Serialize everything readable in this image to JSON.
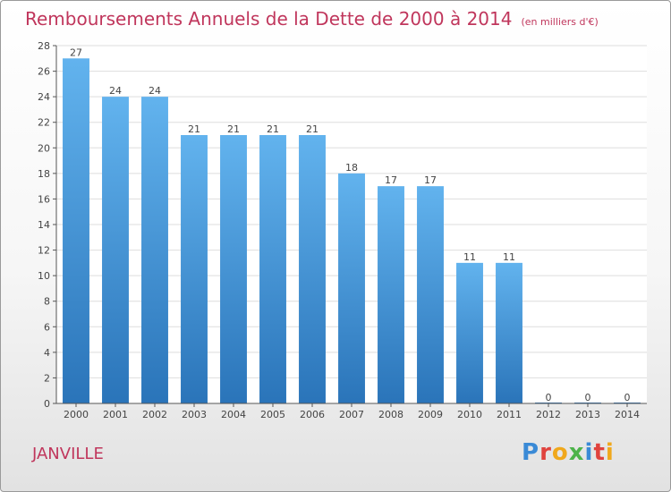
{
  "chart_data": {
    "type": "bar",
    "title": "Remboursements Annuels de la Dette de 2000 à 2014",
    "subtitle": "(en milliers d'€)",
    "categories": [
      "2000",
      "2001",
      "2002",
      "2003",
      "2004",
      "2005",
      "2006",
      "2007",
      "2008",
      "2009",
      "2010",
      "2011",
      "2012",
      "2013",
      "2014"
    ],
    "values": [
      27,
      24,
      24,
      21,
      21,
      21,
      21,
      18,
      17,
      17,
      11,
      11,
      0,
      0,
      0
    ],
    "ylim": [
      0,
      28
    ],
    "yticks": [
      0,
      2,
      4,
      6,
      8,
      10,
      12,
      14,
      16,
      18,
      20,
      22,
      24,
      26,
      28
    ],
    "xlabel": "",
    "ylabel": "",
    "grid": true
  },
  "footer": {
    "commune": "JANVILLE",
    "logo": "Proxiti"
  },
  "colors": {
    "bar_light": "#5fb0ec",
    "bar_dark": "#2a78bf",
    "title": "#c0365c",
    "grid": "#dddddd"
  }
}
